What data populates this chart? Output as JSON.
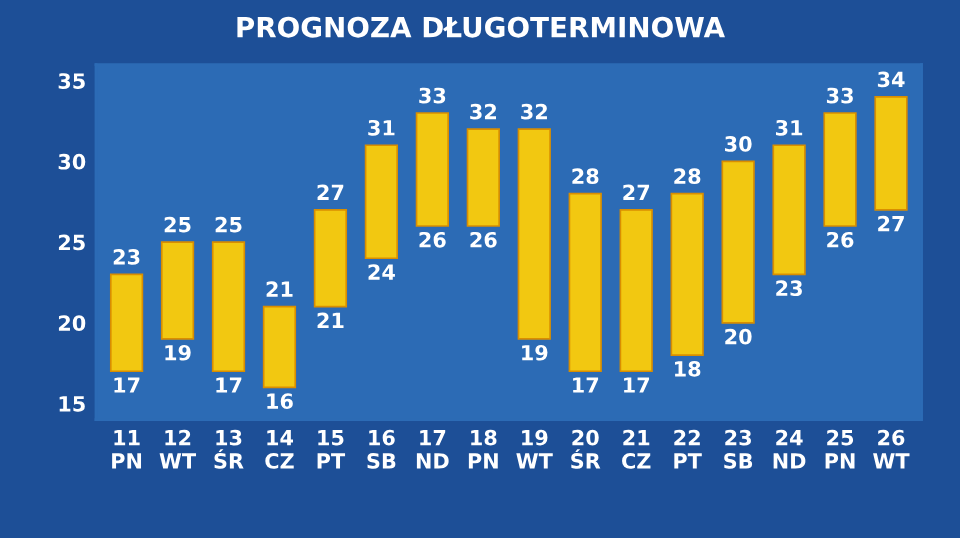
{
  "chart_data": {
    "type": "bar",
    "title": "PROGNOZA DŁUGOTERMINOWA",
    "categories": [
      "11\nPN",
      "12\nWT",
      "13\nŚR",
      "14\nCZ",
      "15\nPT",
      "16\nSB",
      "17\nND",
      "18\nPN",
      "19\nWT",
      "20\nŚR",
      "21\nCZ",
      "22\nPT",
      "23\nSB",
      "24\nND",
      "25\nPN",
      "26\nWT"
    ],
    "base": [
      17,
      19,
      17,
      16,
      21,
      24,
      26,
      26,
      19,
      17,
      17,
      18,
      20,
      23,
      26,
      27
    ],
    "values": [
      6,
      6,
      8,
      5,
      6,
      7,
      7,
      6,
      13,
      11,
      10,
      10,
      10,
      8,
      7,
      7
    ],
    "color": "#f2c811",
    "ylim": [
      14,
      36
    ],
    "yticks": [
      15,
      20,
      25,
      30,
      35
    ],
    "grid": false,
    "annotations": [
      {
        "text": "23",
        "x": "11\nPN",
        "y": 23
      },
      {
        "text": "17",
        "x": "11\nPN",
        "y": 17
      },
      {
        "text": "25",
        "x": "12\nWT",
        "y": 25
      },
      {
        "text": "19",
        "x": "12\nWT",
        "y": 19
      },
      {
        "text": "25",
        "x": "13\nŚR",
        "y": 25
      },
      {
        "text": "17",
        "x": "13\nŚR",
        "y": 17
      },
      {
        "text": "21",
        "x": "14\nCZ",
        "y": 21
      },
      {
        "text": "16",
        "x": "14\nCZ",
        "y": 16
      },
      {
        "text": "27",
        "x": "15\nPT",
        "y": 27
      },
      {
        "text": "21",
        "x": "15\nPT",
        "y": 21
      },
      {
        "text": "31",
        "x": "16\nSB",
        "y": 31
      },
      {
        "text": "24",
        "x": "16\nSB",
        "y": 24
      },
      {
        "text": "33",
        "x": "17\nND",
        "y": 33
      },
      {
        "text": "26",
        "x": "17\nND",
        "y": 26
      },
      {
        "text": "32",
        "x": "18\nPN",
        "y": 32
      },
      {
        "text": "26",
        "x": "18\nPN",
        "y": 26
      },
      {
        "text": "32",
        "x": "19\nWT",
        "y": 32
      },
      {
        "text": "19",
        "x": "19\nWT",
        "y": 19
      },
      {
        "text": "28",
        "x": "20\nŚR",
        "y": 28
      },
      {
        "text": "17",
        "x": "20\nŚR",
        "y": 17
      },
      {
        "text": "27",
        "x": "21\nCZ",
        "y": 27
      },
      {
        "text": "17",
        "x": "21\nCZ",
        "y": 17
      },
      {
        "text": "28",
        "x": "22\nPT",
        "y": 28
      },
      {
        "text": "18",
        "x": "22\nPT",
        "y": 18
      },
      {
        "text": "30",
        "x": "23\nSB",
        "y": 30
      },
      {
        "text": "20",
        "x": "23\nSB",
        "y": 20
      },
      {
        "text": "31",
        "x": "24\nND",
        "y": 31
      },
      {
        "text": "23",
        "x": "24\nND",
        "y": 23
      },
      {
        "text": "33",
        "x": "25\nPN",
        "y": 33
      },
      {
        "text": "26",
        "x": "25\nPN",
        "y": 26
      },
      {
        "text": "34",
        "x": "26\nWT",
        "y": 34
      },
      {
        "text": "27",
        "x": "26\nWT",
        "y": 27
      }
    ]
  }
}
